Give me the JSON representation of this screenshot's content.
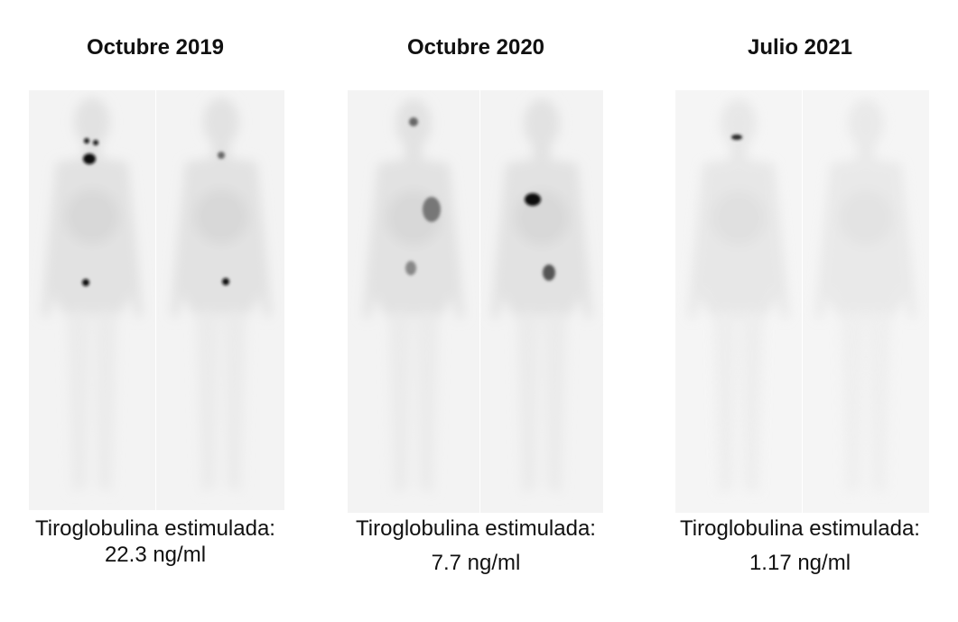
{
  "panels": [
    {
      "title": "Octubre 2019",
      "caption": "Tiroglobulina estimulada:",
      "value": "22.3 ng/ml"
    },
    {
      "title": "Octubre 2020",
      "caption": "Tiroglobulina estimulada:",
      "value": "7.7 ng/ml"
    },
    {
      "title": "Julio 2021",
      "caption": "Tiroglobulina estimulada:",
      "value": "1.17 ng/ml"
    }
  ]
}
